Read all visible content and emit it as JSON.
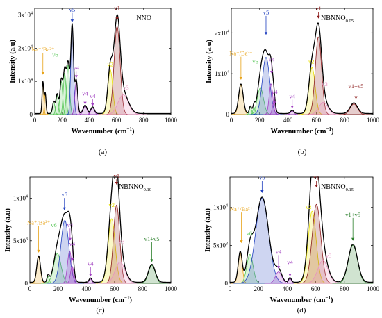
{
  "chart_data": [
    {
      "type": "line",
      "panel": "(a)",
      "title": "NNO",
      "title_sub": "",
      "xlabel": "Wavenumber",
      "xlabel_unit": "(cm",
      "xlabel_sup": "−1",
      "ylabel": "Intensity (a.u)",
      "xlim": [
        0,
        1000
      ],
      "ylim": [
        0,
        32000
      ],
      "xticks": [
        0,
        200,
        400,
        600,
        800,
        1000
      ],
      "yticks": [
        {
          "v": 0,
          "base": "0",
          "sup": ""
        },
        {
          "v": 10000,
          "base": "1x10",
          "sup": "4"
        },
        {
          "v": 20000,
          "base": "2x10",
          "sup": "4"
        },
        {
          "v": 30000,
          "base": "3x10",
          "sup": "4"
        }
      ],
      "series": [
        {
          "name": "Na⁺/Ba²⁺",
          "color": "#e8a317",
          "components": [
            [
              60,
              9500,
              6
            ],
            [
              77,
              6200,
              6
            ]
          ]
        },
        {
          "name": "v6",
          "color": "#5cc85c",
          "components": [
            [
              140,
              3600,
              9
            ],
            [
              165,
              5800,
              9
            ],
            [
              195,
              10000,
              10
            ],
            [
              220,
              12500,
              10
            ],
            [
              245,
              15000,
              11
            ]
          ]
        },
        {
          "name": "v5",
          "color": "#1f3fbf",
          "components": [
            [
              275,
              26500,
              10
            ]
          ]
        },
        {
          "name": "v4",
          "color": "#a040c0",
          "components": [
            [
              305,
              10000,
              10
            ],
            [
              370,
              2500,
              14
            ],
            [
              425,
              2000,
              13
            ]
          ]
        },
        {
          "name": "v2",
          "color": "#e8e000",
          "components": [
            [
              555,
              13500,
              18
            ]
          ]
        },
        {
          "name": "v1",
          "color": "#8b1a1a",
          "components": [
            [
              605,
              26500,
              22
            ]
          ]
        },
        {
          "name": "v3",
          "color": "#e890c0",
          "components": [
            [
              650,
              6000,
              38
            ]
          ]
        }
      ],
      "annotations": [
        {
          "label": "Na⁺/Ba²⁺",
          "color": "#e8a317",
          "x": 60,
          "y": 19000,
          "arrow_to": 12000
        },
        {
          "label": "v6",
          "color": "#5cc85c",
          "x": 150,
          "y": 17500
        },
        {
          "label": "v5",
          "color": "#1f3fbf",
          "x": 275,
          "y": 31000,
          "arrow_to": 27800
        },
        {
          "label": "v4",
          "color": "#a040c0",
          "x": 305,
          "y": 13500,
          "arrow_to": 11000
        },
        {
          "label": "v4",
          "color": "#a040c0",
          "x": 370,
          "y": 5800,
          "arrow_to": 3000
        },
        {
          "label": "v4",
          "color": "#a040c0",
          "x": 425,
          "y": 5000,
          "arrow_to": 2500
        },
        {
          "label": "v2",
          "color": "#e8e000",
          "x": 555,
          "y": 14500
        },
        {
          "label": "v1",
          "color": "#8b1a1a",
          "x": 605,
          "y": 31500,
          "arrow_to": 28500
        },
        {
          "label": "v3",
          "color": "#e890c0",
          "x": 670,
          "y": 7500
        }
      ]
    },
    {
      "type": "line",
      "panel": "(b)",
      "title": "NBNNO",
      "title_sub": "0.05",
      "xlabel": "Wavenumber",
      "xlabel_unit": "(cm",
      "xlabel_sup": "−1",
      "ylabel": "Intensity (a.u)",
      "xlim": [
        0,
        1000
      ],
      "ylim": [
        0,
        26000
      ],
      "xticks": [
        0,
        200,
        400,
        600,
        800,
        1000
      ],
      "yticks": [
        {
          "v": 0,
          "base": "0",
          "sup": ""
        },
        {
          "v": 10000,
          "base": "1x10",
          "sup": "4"
        },
        {
          "v": 20000,
          "base": "2x10",
          "sup": "4"
        }
      ],
      "series": [
        {
          "name": "Na⁺/Ba²⁺",
          "color": "#e8a317",
          "components": [
            [
              68,
              7200,
              16
            ]
          ]
        },
        {
          "name": "v6",
          "color": "#5cc85c",
          "components": [
            [
              135,
              1800,
              8
            ],
            [
              160,
              1800,
              8
            ],
            [
              205,
              6500,
              22
            ]
          ]
        },
        {
          "name": "v5",
          "color": "#1f3fbf",
          "components": [
            [
              245,
              14000,
              26
            ]
          ]
        },
        {
          "name": "v4",
          "color": "#a040c0",
          "components": [
            [
              280,
              7500,
              13
            ],
            [
              300,
              3000,
              10
            ],
            [
              430,
              800,
              12
            ]
          ]
        },
        {
          "name": "v2",
          "color": "#e8e000",
          "components": [
            [
              570,
              11500,
              22
            ]
          ]
        },
        {
          "name": "v1",
          "color": "#8b1a1a",
          "components": [
            [
              615,
              19000,
              22
            ]
          ]
        },
        {
          "name": "v3",
          "color": "#e890c0",
          "components": [
            [
              650,
              3000,
              32
            ]
          ]
        },
        {
          "name": "v1+v5",
          "color": "#8b1a1a",
          "components": [
            [
              865,
              2600,
              26
            ]
          ]
        }
      ],
      "annotations": [
        {
          "label": "Na⁺/Ba²⁺",
          "color": "#e8a317",
          "x": 68,
          "y": 14500,
          "arrow_to": 8500
        },
        {
          "label": "v6",
          "color": "#5cc85c",
          "x": 170,
          "y": 12500
        },
        {
          "label": "v5",
          "color": "#1f3fbf",
          "x": 245,
          "y": 24500,
          "arrow_to": 19500
        },
        {
          "label": "v4",
          "color": "#a040c0",
          "x": 285,
          "y": 13000,
          "arrow_to": 10000
        },
        {
          "label": "v4",
          "color": "#a040c0",
          "x": 305,
          "y": 5000,
          "arrow_to": 2500
        },
        {
          "label": "v4",
          "color": "#a040c0",
          "x": 430,
          "y": 4000,
          "arrow_to": 1500
        },
        {
          "label": "v2",
          "color": "#e8e000",
          "x": 565,
          "y": 12500
        },
        {
          "label": "v1",
          "color": "#8b1a1a",
          "x": 615,
          "y": 25500,
          "arrow_to": 23500
        },
        {
          "label": "v3",
          "color": "#e890c0",
          "x": 660,
          "y": 7000
        },
        {
          "label": "v1+v5",
          "color": "#8b1a1a",
          "x": 880,
          "y": 6500,
          "arrow_to": 3800
        }
      ]
    },
    {
      "type": "line",
      "panel": "(c)",
      "title": "NBNNO",
      "title_sub": "0.10",
      "xlabel": "Wavenumber",
      "xlabel_unit": "(cm",
      "xlabel_sup": "−1",
      "ylabel": "Intensity (a.u)",
      "xlim": [
        0,
        1000
      ],
      "ylim": [
        0,
        12500
      ],
      "xticks": [
        0,
        200,
        400,
        600,
        800,
        1000
      ],
      "yticks": [
        {
          "v": 0,
          "base": "0",
          "sup": ""
        },
        {
          "v": 5000,
          "base": "5x10",
          "sup": "3"
        },
        {
          "v": 10000,
          "base": "1x10",
          "sup": "4"
        }
      ],
      "series": [
        {
          "name": "Na⁺/Ba²⁺",
          "color": "#e8a317",
          "components": [
            [
              62,
              3100,
              13
            ]
          ]
        },
        {
          "name": "v6",
          "color": "#5cc85c",
          "components": [
            [
              130,
              800,
              8
            ],
            [
              195,
              3500,
              26
            ]
          ]
        },
        {
          "name": "v5",
          "color": "#1f3fbf",
          "components": [
            [
              248,
              7400,
              28
            ]
          ]
        },
        {
          "name": "v4",
          "color": "#a040c0",
          "components": [
            [
              282,
              3800,
              15
            ],
            [
              300,
              2000,
              12
            ],
            [
              430,
              500,
              10
            ]
          ]
        },
        {
          "name": "v2",
          "color": "#e8e000",
          "components": [
            [
              580,
              7600,
              25
            ]
          ]
        },
        {
          "name": "v1",
          "color": "#8b1a1a",
          "components": [
            [
              615,
              9200,
              22
            ]
          ]
        },
        {
          "name": "v3",
          "color": "#e890c0",
          "components": [
            [
              640,
              2500,
              35
            ]
          ]
        },
        {
          "name": "v1+v5",
          "color": "#2a7f2a",
          "components": [
            [
              865,
              2100,
              24
            ]
          ]
        }
      ],
      "annotations": [
        {
          "label": "Na⁺/Ba²⁺",
          "color": "#e8a317",
          "x": 62,
          "y": 6900,
          "arrow_to": 3600
        },
        {
          "label": "v6",
          "color": "#5cc85c",
          "x": 170,
          "y": 6600
        },
        {
          "label": "v5",
          "color": "#1f3fbf",
          "x": 245,
          "y": 10200,
          "arrow_to": 8600
        },
        {
          "label": "v4",
          "color": "#a040c0",
          "x": 285,
          "y": 6600,
          "arrow_to": 5000
        },
        {
          "label": "v4",
          "color": "#a040c0",
          "x": 300,
          "y": 4400,
          "arrow_to": 2600
        },
        {
          "label": "v4",
          "color": "#a040c0",
          "x": 430,
          "y": 2100,
          "arrow_to": 800
        },
        {
          "label": "v2",
          "color": "#e8e000",
          "x": 580,
          "y": 9000
        },
        {
          "label": "v1",
          "color": "#8b1a1a",
          "x": 615,
          "y": 12400,
          "arrow_to": 11600
        },
        {
          "label": "v3",
          "color": "#e890c0",
          "x": 650,
          "y": 4700
        },
        {
          "label": "v1+v5",
          "color": "#2a7f2a",
          "x": 865,
          "y": 5000,
          "arrow_to": 2500
        }
      ]
    },
    {
      "type": "line",
      "panel": "(d)",
      "title": "NBNNO",
      "title_sub": "0.15",
      "xlabel": "Wavenumber",
      "xlabel_unit": "(cm",
      "xlabel_sup": "−1",
      "ylabel": "Intensity (a.u)",
      "xlim": [
        0,
        1000
      ],
      "ylim": [
        0,
        14000
      ],
      "xticks": [
        0,
        200,
        400,
        600,
        800,
        1000
      ],
      "yticks": [
        {
          "v": 0,
          "base": "0",
          "sup": ""
        },
        {
          "v": 5000,
          "base": "5x10",
          "sup": "3"
        },
        {
          "v": 10000,
          "base": "1x10",
          "sup": "4"
        }
      ],
      "series": [
        {
          "name": "Na⁺/Ba²⁺",
          "color": "#e8a317",
          "components": [
            [
              72,
              4000,
              14
            ]
          ]
        },
        {
          "name": "v6",
          "color": "#5cc85c",
          "components": [
            [
              140,
              3800,
              22
            ]
          ]
        },
        {
          "name": "v5",
          "color": "#1f3fbf",
          "components": [
            [
              225,
              11200,
              45
            ]
          ]
        },
        {
          "name": "v4",
          "color": "#a040c0",
          "components": [
            [
              340,
              1500,
              22
            ],
            [
              420,
              600,
              10
            ]
          ]
        },
        {
          "name": "v2",
          "color": "#e8e000",
          "components": [
            [
              575,
              9500,
              28
            ]
          ]
        },
        {
          "name": "v1",
          "color": "#8b1a1a",
          "components": [
            [
              605,
              10400,
              30
            ]
          ]
        },
        {
          "name": "v3",
          "color": "#e890c0",
          "components": [
            [
              650,
              3000,
              36
            ]
          ]
        },
        {
          "name": "v1+v5",
          "color": "#2a7f2a",
          "components": [
            [
              860,
              5000,
              32
            ]
          ]
        }
      ],
      "annotations": [
        {
          "label": "Na⁺/Ba²⁺",
          "color": "#e8a317",
          "x": 80,
          "y": 9500,
          "arrow_to": 5300
        },
        {
          "label": "v6",
          "color": "#5cc85c",
          "x": 135,
          "y": 6300
        },
        {
          "label": "v5",
          "color": "#1f3fbf",
          "x": 225,
          "y": 13700,
          "arrow_to": 11900
        },
        {
          "label": "v4",
          "color": "#a040c0",
          "x": 340,
          "y": 3900,
          "arrow_to": 1900
        },
        {
          "label": "v4",
          "color": "#a040c0",
          "x": 420,
          "y": 2500,
          "arrow_to": 900
        },
        {
          "label": "v2",
          "color": "#e8e000",
          "x": 550,
          "y": 9800
        },
        {
          "label": "v1",
          "color": "#8b1a1a",
          "x": 605,
          "y": 13700,
          "arrow_to": 12600
        },
        {
          "label": "v3",
          "color": "#e890c0",
          "x": 690,
          "y": 3400
        },
        {
          "label": "v1+v5",
          "color": "#2a7f2a",
          "x": 860,
          "y": 8800,
          "arrow_to": 5600
        }
      ]
    }
  ]
}
